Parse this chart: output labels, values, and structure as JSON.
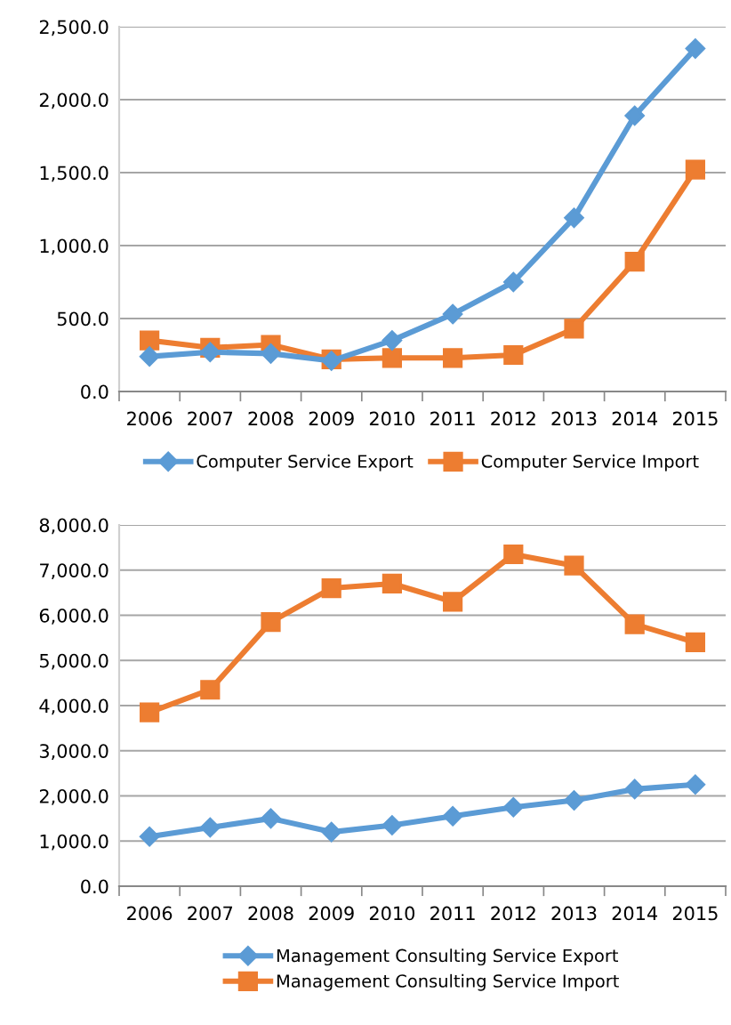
{
  "chart_data": [
    {
      "type": "line",
      "categories": [
        "2006",
        "2007",
        "2008",
        "2009",
        "2010",
        "2011",
        "2012",
        "2013",
        "2014",
        "2015"
      ],
      "series": [
        {
          "name": "Computer Service Export",
          "color": "#5b9bd5",
          "marker": "diamond",
          "values": [
            240,
            270,
            260,
            210,
            350,
            530,
            750,
            1190,
            1890,
            2350
          ]
        },
        {
          "name": "Computer Service Import",
          "color": "#ed7d31",
          "marker": "square",
          "values": [
            350,
            300,
            320,
            220,
            230,
            230,
            250,
            430,
            890,
            1520
          ]
        }
      ],
      "ylim": [
        0,
        2500
      ],
      "yticks": [
        {
          "value": 0,
          "label": "0.0"
        },
        {
          "value": 500,
          "label": "500.0"
        },
        {
          "value": 1000,
          "label": "1,000.0"
        },
        {
          "value": 1500,
          "label": "1,500.0"
        },
        {
          "value": 2000,
          "label": "2,000.0"
        },
        {
          "value": 2500,
          "label": "2,500.0"
        }
      ],
      "grid": "y",
      "legend": "bottom",
      "line_style": "solid"
    },
    {
      "type": "line",
      "categories": [
        "2006",
        "2007",
        "2008",
        "2009",
        "2010",
        "2011",
        "2012",
        "2013",
        "2014",
        "2015"
      ],
      "series": [
        {
          "name": "Management Consulting Service Export",
          "color": "#5b9bd5",
          "marker": "diamond",
          "values": [
            1100,
            1300,
            1500,
            1200,
            1350,
            1550,
            1750,
            1900,
            2150,
            2250
          ]
        },
        {
          "name": "Management Consulting Service Import",
          "color": "#ed7d31",
          "marker": "square",
          "values": [
            3850,
            4350,
            5850,
            6600,
            6700,
            6300,
            7350,
            7100,
            5800,
            5400
          ]
        }
      ],
      "ylim": [
        0,
        8000
      ],
      "yticks": [
        {
          "value": 0,
          "label": "0.0"
        },
        {
          "value": 1000,
          "label": "1,000.0"
        },
        {
          "value": 2000,
          "label": "2,000.0"
        },
        {
          "value": 3000,
          "label": "3,000.0"
        },
        {
          "value": 4000,
          "label": "4,000.0"
        },
        {
          "value": 5000,
          "label": "5,000.0"
        },
        {
          "value": 6000,
          "label": "6,000.0"
        },
        {
          "value": 7000,
          "label": "7,000.0"
        },
        {
          "value": 8000,
          "label": "8,000.0"
        }
      ],
      "grid": "y",
      "legend": "bottom",
      "line_style": "solid"
    }
  ]
}
